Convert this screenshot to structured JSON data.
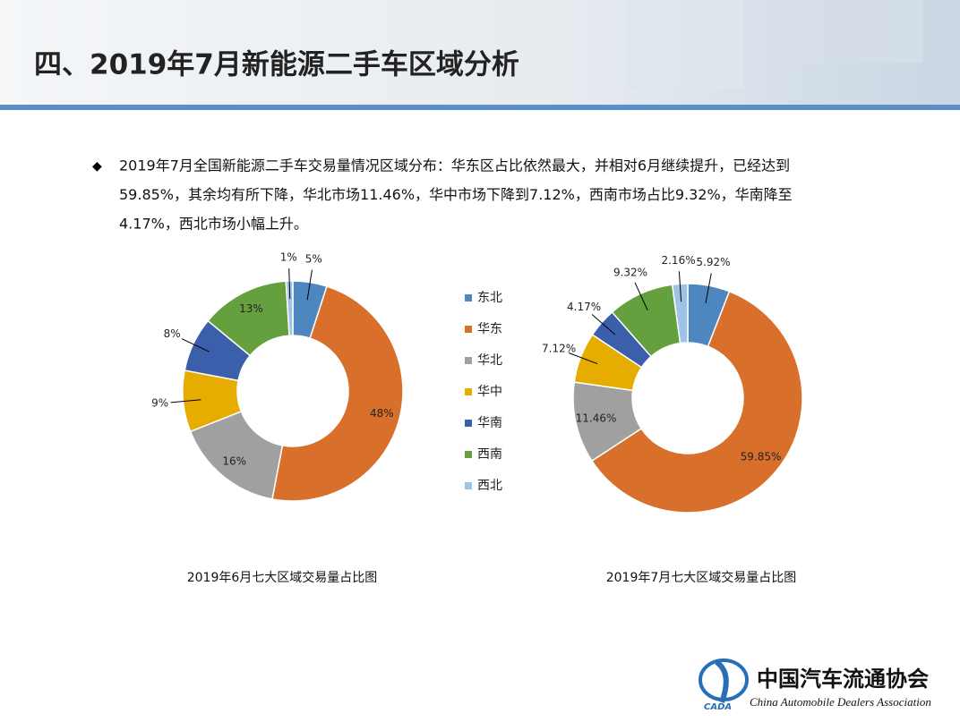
{
  "header": {
    "title": "四、2019年7月新能源二手车区域分析"
  },
  "text": {
    "lines": [
      "2019年7月全国新能源二手车交易量情况区域分布：华东区占比依然最大，并相对6月继续提升，已经达到",
      "59.85%，其余均有所下降，华北市场11.46%，华中市场下降到7.12%，西南市场占比9.32%，华南降至",
      "4.17%，西北市场小幅上升。"
    ]
  },
  "logo": {
    "name": "中国汽车流通协会",
    "english": "China Automobile Dealers Association",
    "abbr": "CADA"
  },
  "chart_data": {
    "type": "donut",
    "categories": [
      "东北",
      "华东",
      "华北",
      "华中",
      "华南",
      "西南",
      "西北"
    ],
    "colors": [
      "#4e86c0",
      "#d86f2a",
      "#a0a0a0",
      "#e6ac00",
      "#3b5faa",
      "#64a03e",
      "#9dc3e6"
    ],
    "series": [
      {
        "name": "2019年6月七大区域交易量占比图",
        "values": [
          5,
          48,
          16,
          9,
          8,
          13,
          1
        ],
        "value_labels": [
          "5%",
          "48%",
          "16%",
          "9%",
          "8%",
          "13%",
          "1%"
        ]
      },
      {
        "name": "2019年7月七大区域交易量占比图",
        "values": [
          5.92,
          59.85,
          11.46,
          7.12,
          4.17,
          9.32,
          2.16
        ],
        "value_labels": [
          "5.92%",
          "59.85%",
          "11.46%",
          "7.12%",
          "4.17%",
          "9.32%",
          "2.16%"
        ]
      }
    ]
  }
}
